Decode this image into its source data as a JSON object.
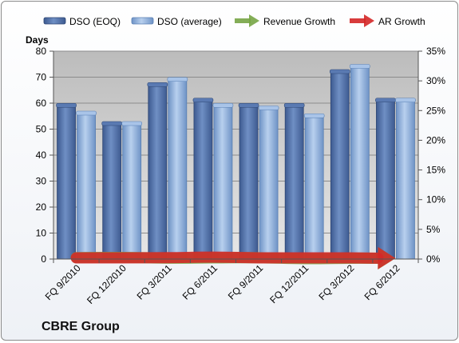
{
  "chart_data": {
    "type": "bar",
    "title": "",
    "company": "CBRE Group",
    "ylabel": "Days",
    "categories": [
      "FQ 9/2010",
      "FQ 12/2010",
      "FQ 3/2011",
      "FQ 6/2011",
      "FQ 9/2011",
      "FQ 12/2011",
      "FQ 3/2012",
      "FQ 6/2012"
    ],
    "ylim": [
      0,
      80
    ],
    "y_ticks": [
      "0",
      "10",
      "20",
      "30",
      "40",
      "50",
      "60",
      "70",
      "80"
    ],
    "y2lim": [
      0,
      35
    ],
    "y2_ticks": [
      "0%",
      "5%",
      "10%",
      "15%",
      "20%",
      "25%",
      "30%",
      "35%"
    ],
    "legend_position": "top",
    "grid": true,
    "series": [
      {
        "name": "DSO (EOQ)",
        "type": "bar",
        "axis": "left",
        "color": "#4f6fa8",
        "values": [
          59,
          52,
          67,
          61,
          59,
          59,
          72,
          61
        ]
      },
      {
        "name": "DSO (average)",
        "type": "bar",
        "axis": "left",
        "color": "#8fb0dc",
        "values": [
          56,
          52,
          69,
          59,
          58,
          55,
          74,
          61
        ]
      },
      {
        "name": "Revenue Growth",
        "type": "arrow-line",
        "axis": "right",
        "color": "#77a545",
        "values": [
          0.24,
          0.27,
          0.155,
          0.2,
          0.22,
          0.067,
          0.14,
          0.13
        ]
      },
      {
        "name": "AR Growth",
        "type": "arrow-line",
        "axis": "right",
        "color": "#d42727",
        "values": [
          0.2,
          0.21,
          0.23,
          0.32,
          0.21,
          0.205,
          0.2,
          0.13
        ]
      }
    ]
  }
}
